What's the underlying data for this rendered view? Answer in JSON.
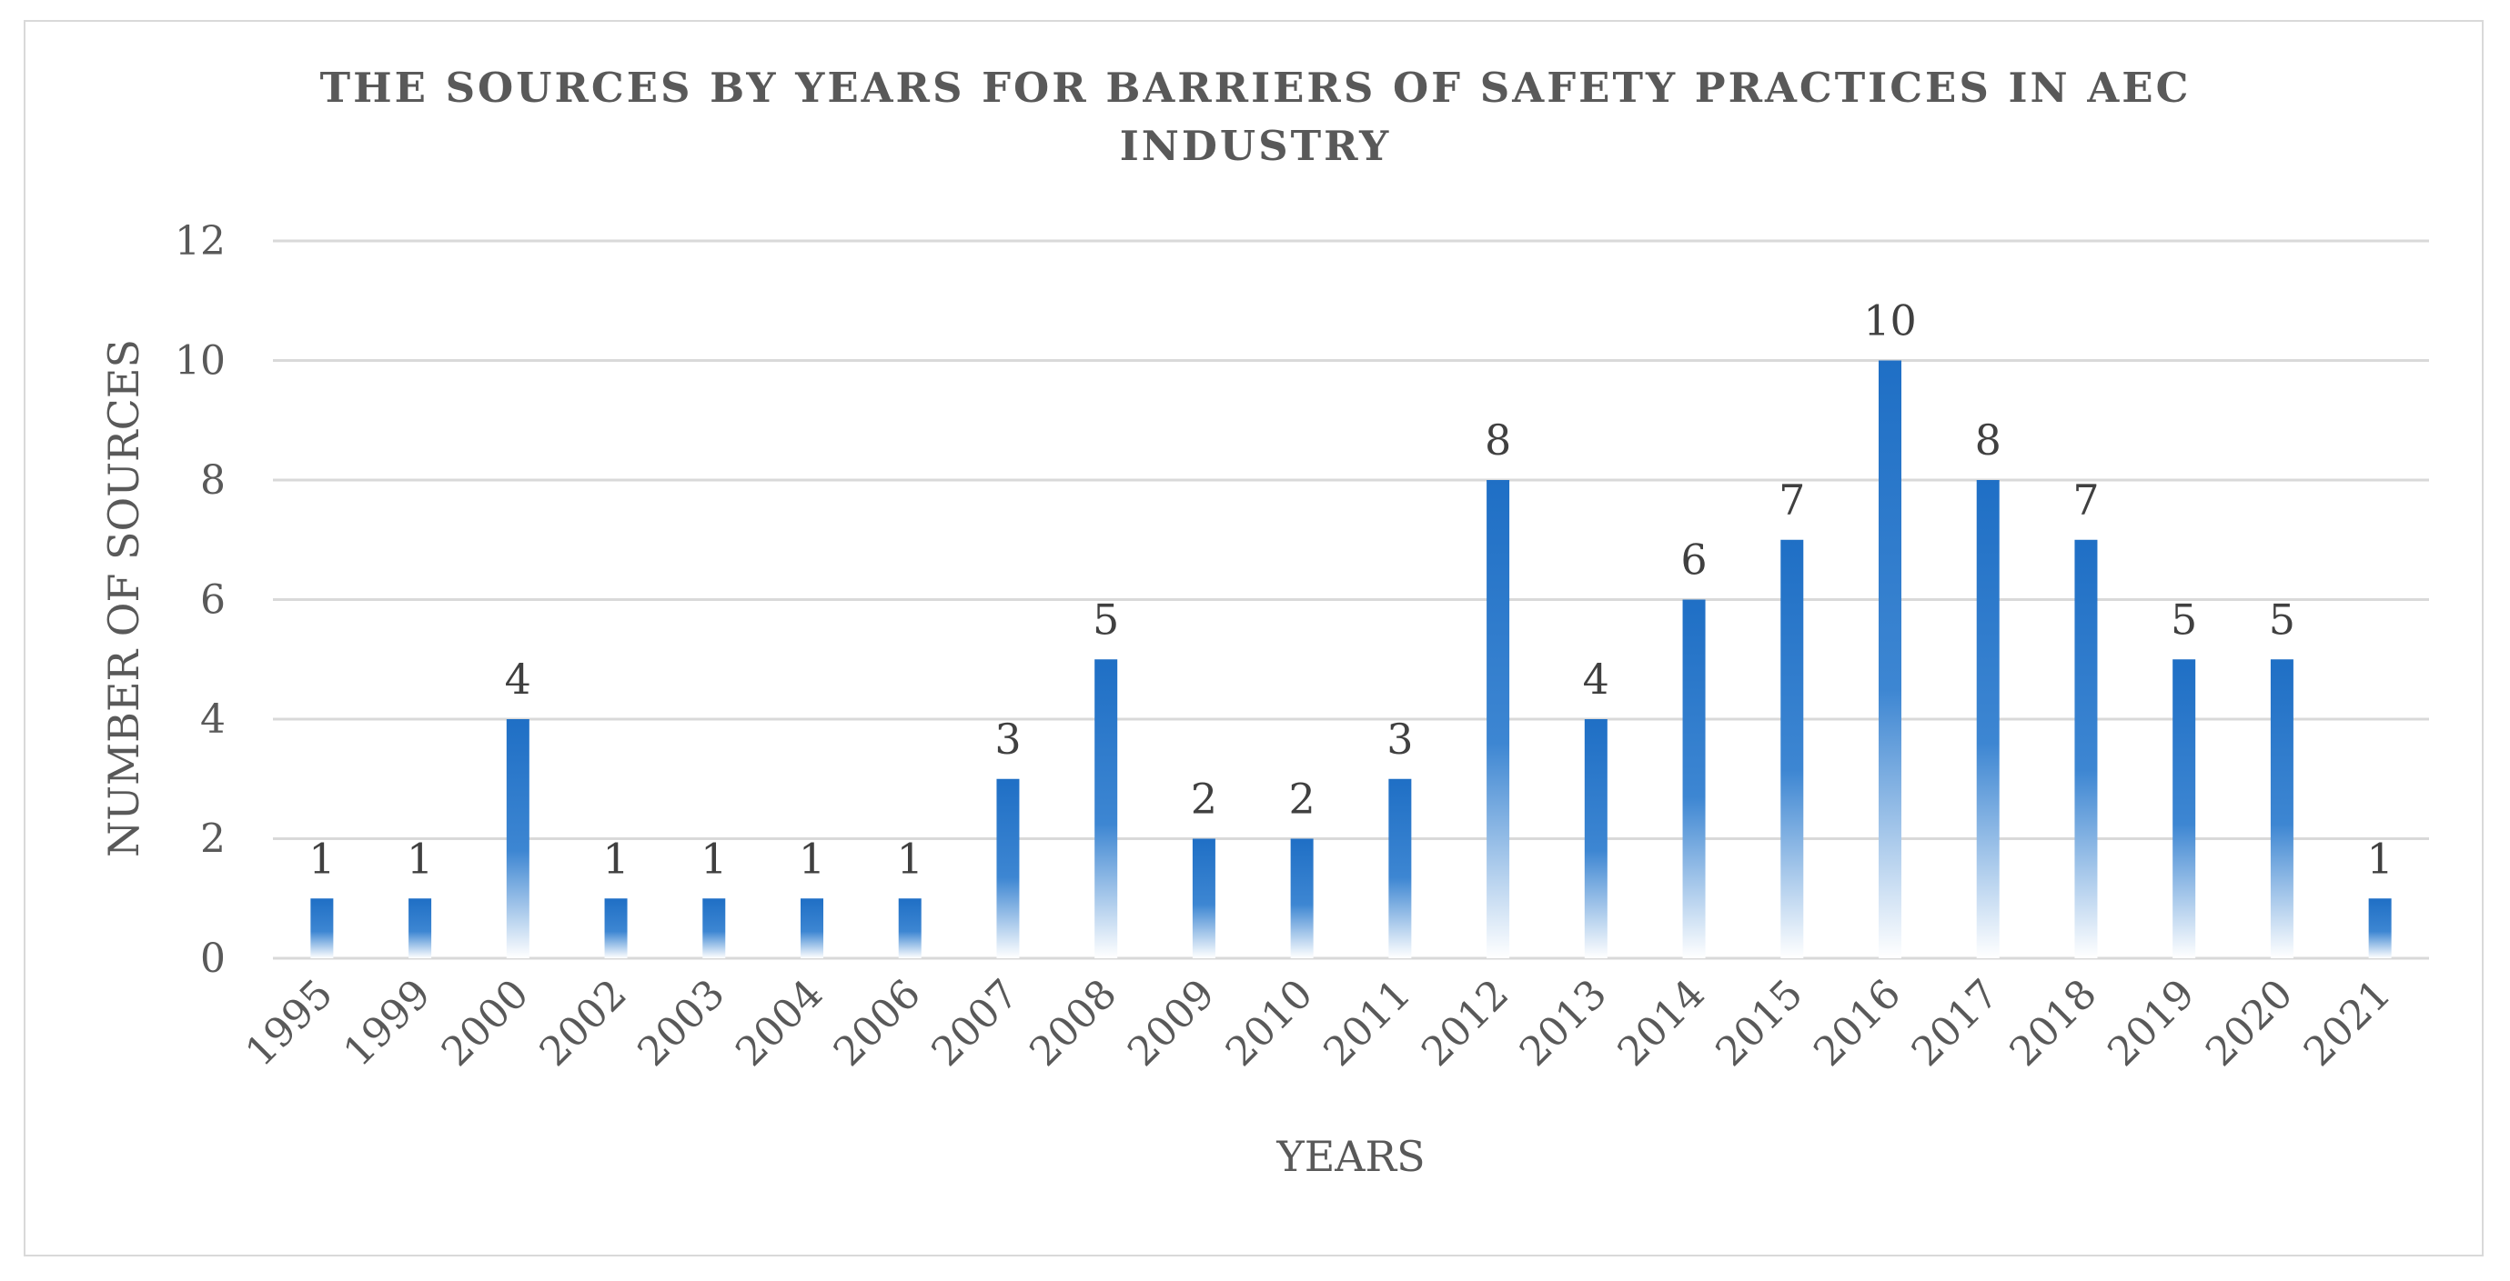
{
  "chart_data": {
    "type": "bar",
    "title_lines": [
      "THE SOURCES BY YEARS FOR BARRIERS OF SAFETY PRACTICES IN AEC",
      "INDUSTRY"
    ],
    "xlabel": "YEARS",
    "ylabel": "NUMBER OF SOURCES",
    "categories": [
      "1995",
      "1999",
      "2000",
      "2002",
      "2003",
      "2004",
      "2006",
      "2007",
      "2008",
      "2009",
      "2010",
      "2011",
      "2012",
      "2013",
      "2014",
      "2015",
      "2016",
      "2017",
      "2018",
      "2019",
      "2020",
      "2021"
    ],
    "values": [
      1,
      1,
      4,
      1,
      1,
      1,
      1,
      3,
      5,
      2,
      2,
      3,
      8,
      4,
      6,
      7,
      10,
      8,
      7,
      5,
      5,
      1
    ],
    "ylim": [
      0,
      12
    ],
    "yticks": [
      "0",
      "2",
      "4",
      "6",
      "8",
      "10",
      "12"
    ],
    "grid": true,
    "legend": "none",
    "colors": {
      "bar_top": "#1f6fc5",
      "bar_bottom": "#ffffff",
      "text": "#595959",
      "label": "#404040",
      "grid": "#d9d9d9"
    }
  }
}
